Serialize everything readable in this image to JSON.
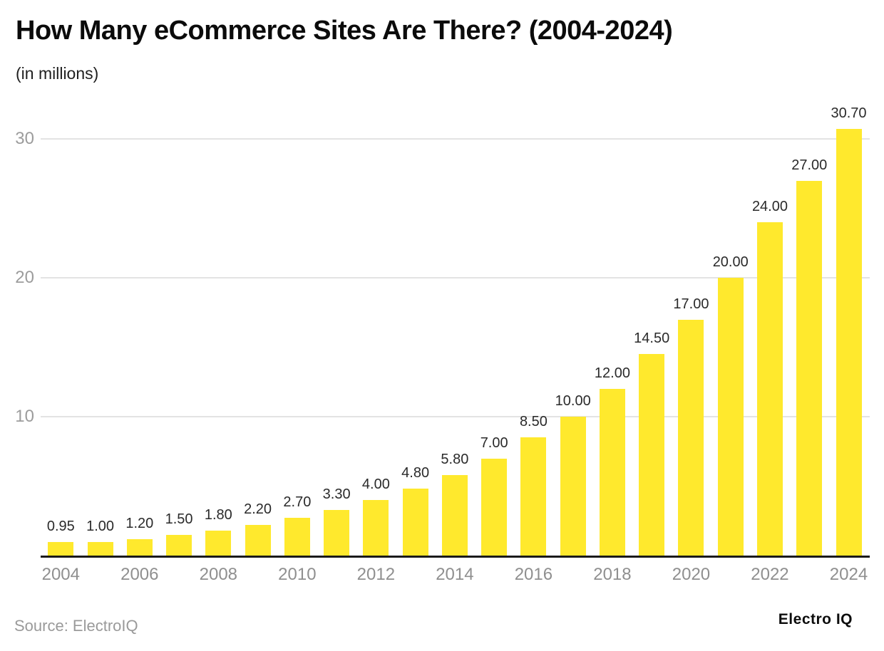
{
  "header": {
    "title": "How Many eCommerce Sites Are There? (2004-2024)",
    "subtitle": "(in millions)"
  },
  "footer": {
    "source": "Source: ElectroIQ",
    "brand": "Electro IQ"
  },
  "chart_data": {
    "type": "bar",
    "title": "How Many eCommerce Sites Are There? (2004-2024)",
    "subtitle": "(in millions)",
    "categories": [
      "2004",
      "2005",
      "2006",
      "2007",
      "2008",
      "2009",
      "2010",
      "2011",
      "2012",
      "2013",
      "2014",
      "2015",
      "2016",
      "2017",
      "2018",
      "2019",
      "2020",
      "2021",
      "2022",
      "2023",
      "2024"
    ],
    "values": [
      0.95,
      1.0,
      1.2,
      1.5,
      1.8,
      2.2,
      2.7,
      3.3,
      4.0,
      4.8,
      5.8,
      7.0,
      8.5,
      10.0,
      12.0,
      14.5,
      17.0,
      20.0,
      24.0,
      27.0,
      30.7
    ],
    "value_labels": [
      "0.95",
      "1.00",
      "1.20",
      "1.50",
      "1.80",
      "2.20",
      "2.70",
      "3.30",
      "4.00",
      "4.80",
      "5.80",
      "7.00",
      "8.50",
      "10.00",
      "12.00",
      "14.50",
      "17.00",
      "20.00",
      "24.00",
      "27.00",
      "30.70"
    ],
    "x_tick_labels": [
      "2004",
      "2006",
      "2008",
      "2010",
      "2012",
      "2014",
      "2016",
      "2018",
      "2020",
      "2022",
      "2024"
    ],
    "x_tick_every": 2,
    "y_ticks": [
      10,
      20,
      30
    ],
    "ylim": [
      0,
      33.8
    ],
    "grid": true,
    "legend_position": "none",
    "bar_color": "#ffe92d",
    "grid_color": "#e3e3e3",
    "axis_line_color": "#1a1a1a",
    "tick_label_color": "#9c9c9c",
    "value_label_color": "#2a2a2a"
  }
}
